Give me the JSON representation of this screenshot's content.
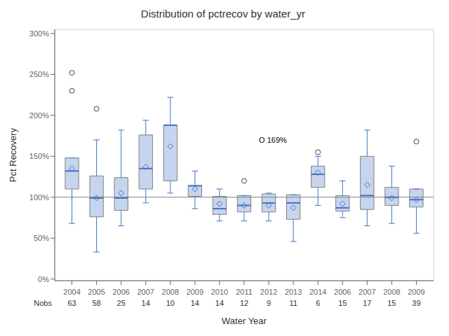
{
  "chart_data": {
    "type": "box",
    "title": "Distribution of pctrecov by water_yr",
    "xlabel": "Water Year",
    "ylabel": "Pct Recovery",
    "categories": [
      "2004",
      "2005",
      "2006",
      "2007",
      "2008",
      "2009",
      "2010",
      "2011",
      "2012",
      "2013",
      "2014",
      "2006",
      "2007",
      "2008",
      "2009"
    ],
    "nobs_label": "Nobs",
    "nobs": [
      63,
      58,
      25,
      14,
      10,
      14,
      14,
      12,
      9,
      11,
      6,
      15,
      17,
      15,
      39
    ],
    "boxes": [
      {
        "q1": 1.1,
        "median": 1.32,
        "q3": 1.48,
        "mean": 1.35,
        "whisk_lo": 0.68,
        "whisk_hi": 1.48,
        "outliers": [
          2.3,
          2.52
        ]
      },
      {
        "q1": 0.76,
        "median": 0.99,
        "q3": 1.26,
        "mean": 0.99,
        "whisk_lo": 0.33,
        "whisk_hi": 1.7,
        "outliers": [
          2.08
        ]
      },
      {
        "q1": 0.84,
        "median": 0.99,
        "q3": 1.24,
        "mean": 1.05,
        "whisk_lo": 0.65,
        "whisk_hi": 1.82,
        "outliers": []
      },
      {
        "q1": 1.1,
        "median": 1.35,
        "q3": 1.76,
        "mean": 1.37,
        "whisk_lo": 0.93,
        "whisk_hi": 1.94,
        "outliers": []
      },
      {
        "q1": 1.2,
        "median": 1.88,
        "q3": 1.88,
        "mean": 1.62,
        "whisk_lo": 1.05,
        "whisk_hi": 2.22,
        "outliers": []
      },
      {
        "q1": 1.01,
        "median": 1.14,
        "q3": 1.14,
        "mean": 1.1,
        "whisk_lo": 0.86,
        "whisk_hi": 1.32,
        "outliers": []
      },
      {
        "q1": 0.79,
        "median": 0.86,
        "q3": 1.01,
        "mean": 0.92,
        "whisk_lo": 0.71,
        "whisk_hi": 1.1,
        "outliers": []
      },
      {
        "q1": 0.82,
        "median": 0.9,
        "q3": 1.02,
        "mean": 0.9,
        "whisk_lo": 0.71,
        "whisk_hi": 1.02,
        "outliers": [
          1.2
        ]
      },
      {
        "q1": 0.82,
        "median": 0.93,
        "q3": 1.04,
        "mean": 0.9,
        "whisk_lo": 0.71,
        "whisk_hi": 1.05,
        "outliers": []
      },
      {
        "q1": 0.73,
        "median": 0.93,
        "q3": 1.03,
        "mean": 0.87,
        "whisk_lo": 0.46,
        "whisk_hi": 1.03,
        "outliers": []
      },
      {
        "q1": 1.12,
        "median": 1.28,
        "q3": 1.38,
        "mean": 1.3,
        "whisk_lo": 0.9,
        "whisk_hi": 1.5,
        "outliers": [
          1.55
        ]
      },
      {
        "q1": 0.83,
        "median": 0.87,
        "q3": 1.02,
        "mean": 0.92,
        "whisk_lo": 0.75,
        "whisk_hi": 1.2,
        "outliers": []
      },
      {
        "q1": 0.85,
        "median": 1.02,
        "q3": 1.5,
        "mean": 1.15,
        "whisk_lo": 0.65,
        "whisk_hi": 1.82,
        "outliers": []
      },
      {
        "q1": 0.9,
        "median": 1.0,
        "q3": 1.12,
        "mean": 0.99,
        "whisk_lo": 0.68,
        "whisk_hi": 1.38,
        "outliers": []
      },
      {
        "q1": 0.88,
        "median": 0.97,
        "q3": 1.1,
        "mean": 0.97,
        "whisk_lo": 0.56,
        "whisk_hi": 1.1,
        "outliers": [
          1.68
        ]
      }
    ],
    "color": "#4472c4",
    "ylim": [
      -0.02,
      3.05
    ],
    "yticks": [
      {
        "value": 0.0,
        "label": "0%"
      },
      {
        "value": 0.5,
        "label": "50%"
      },
      {
        "value": 1.0,
        "label": "100%"
      },
      {
        "value": 1.5,
        "label": "150%"
      },
      {
        "value": 2.0,
        "label": "200%"
      },
      {
        "value": 2.5,
        "label": "250%"
      },
      {
        "value": 3.0,
        "label": "300%"
      }
    ],
    "reference_line": 1.0,
    "annotations": [
      {
        "text": "O 169%",
        "index": 7,
        "y": 1.69
      }
    ]
  }
}
